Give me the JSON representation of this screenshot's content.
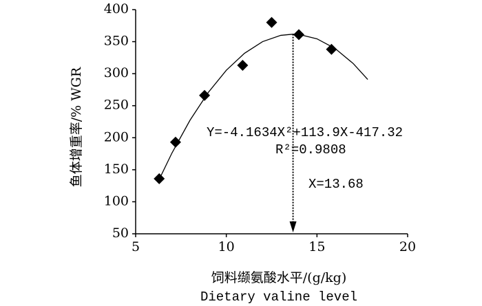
{
  "chart_data": {
    "type": "scatter",
    "y_label": "鱼体增重率/% WGR",
    "x_label": "饲料缬氨酸水平/(g/kg)",
    "x_label_en": "Dietary valine level",
    "x": [
      6.3,
      7.2,
      8.8,
      10.9,
      12.5,
      14.0,
      15.8
    ],
    "values": [
      136,
      193,
      266,
      313,
      380,
      361,
      338
    ],
    "marker": "diamond",
    "color": "#000000",
    "fit": {
      "x": [
        6.3,
        7,
        8,
        9,
        10,
        11,
        12,
        13,
        13.68,
        14,
        15,
        16,
        17,
        17.8
      ],
      "values": [
        135.0,
        176.0,
        227.4,
        270.5,
        305.3,
        331.8,
        350.0,
        359.8,
        361.7,
        361.3,
        354.4,
        339.3,
        315.8,
        291.0
      ]
    },
    "equation": "Y=-4.1634X²+113.9X-417.32",
    "r2_label": "R²=0.9808",
    "vline": {
      "x": 13.68,
      "label": "X=13.68"
    },
    "xlim": [
      5,
      20
    ],
    "xticks": [
      5,
      10,
      15,
      20
    ],
    "ylim": [
      50,
      400
    ],
    "yticks": [
      50,
      100,
      150,
      200,
      250,
      300,
      350,
      400
    ]
  }
}
